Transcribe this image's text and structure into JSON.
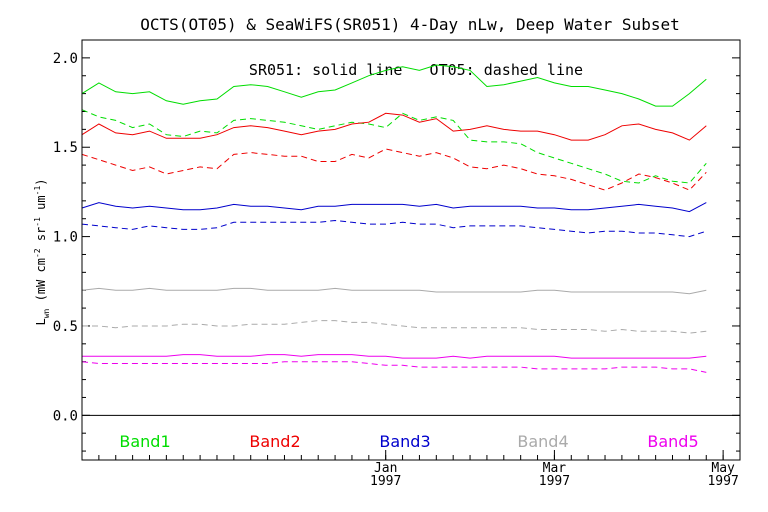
{
  "chart_data": {
    "type": "line",
    "title": "OCTS(OT05) & SeaWiFS(SR051) 4-Day nLw, Deep Water Subset",
    "subtitle": "SR051: solid line   OT05: dashed line",
    "xlabel": "",
    "ylabel": "L_wn (mW cm^-2 sr^-1 um^-1)",
    "ylabel_main": "L",
    "ylabel_sub": "wn",
    "ylabel_units": "(mW cm",
    "ylabel_units_exp1": "-2",
    "ylabel_units_mid": " sr",
    "ylabel_units_exp2": "-1",
    "ylabel_units_mid2": " um",
    "ylabel_units_exp3": "-1",
    "ylabel_units_end": ")",
    "ylim": [
      -0.25,
      2.1
    ],
    "xlim": [
      0,
      39
    ],
    "grid": false,
    "x_ticks": [
      {
        "x": 18,
        "month": "Jan",
        "year": "1997"
      },
      {
        "x": 28,
        "month": "Mar",
        "year": "1997"
      },
      {
        "x": 38,
        "month": "May",
        "year": "1997"
      }
    ],
    "y_ticks": [
      {
        "value": 0.0,
        "label": "0.0"
      },
      {
        "value": 0.5,
        "label": "0.5"
      },
      {
        "value": 1.0,
        "label": "1.0"
      },
      {
        "value": 1.5,
        "label": "1.5"
      },
      {
        "value": 2.0,
        "label": "2.0"
      }
    ],
    "legend": [
      {
        "name": "Band1",
        "color": "#00dd00"
      },
      {
        "name": "Band2",
        "color": "#ee0000"
      },
      {
        "name": "Band3",
        "color": "#0000cc"
      },
      {
        "name": "Band4",
        "color": "#aaaaaa"
      },
      {
        "name": "Band5",
        "color": "#ee00ee"
      }
    ],
    "x": [
      0,
      1,
      2,
      3,
      4,
      5,
      6,
      7,
      8,
      9,
      10,
      11,
      12,
      13,
      14,
      15,
      16,
      17,
      18,
      19,
      20,
      21,
      22,
      23,
      24,
      25,
      26,
      27,
      28,
      29,
      30,
      31,
      32,
      33,
      34,
      35,
      36,
      37
    ],
    "series": [
      {
        "band": "Band1",
        "sensor": "SR051",
        "style": "solid",
        "color": "#00dd00",
        "values": [
          1.8,
          1.86,
          1.81,
          1.8,
          1.81,
          1.76,
          1.74,
          1.76,
          1.77,
          1.84,
          1.85,
          1.84,
          1.81,
          1.78,
          1.81,
          1.82,
          1.86,
          1.9,
          1.93,
          1.95,
          1.93,
          1.96,
          1.95,
          1.93,
          1.84,
          1.85,
          1.87,
          1.89,
          1.86,
          1.84,
          1.84,
          1.82,
          1.8,
          1.77,
          1.73,
          1.73,
          1.8,
          1.88
        ]
      },
      {
        "band": "Band1",
        "sensor": "OT05",
        "style": "dashed",
        "color": "#00dd00",
        "values": [
          1.71,
          1.67,
          1.65,
          1.61,
          1.63,
          1.57,
          1.56,
          1.59,
          1.58,
          1.65,
          1.66,
          1.65,
          1.64,
          1.62,
          1.6,
          1.62,
          1.64,
          1.63,
          1.61,
          1.69,
          1.65,
          1.67,
          1.65,
          1.54,
          1.53,
          1.53,
          1.52,
          1.47,
          1.44,
          1.41,
          1.38,
          1.35,
          1.31,
          1.3,
          1.34,
          1.31,
          1.3,
          1.41
        ]
      },
      {
        "band": "Band2",
        "sensor": "SR051",
        "style": "solid",
        "color": "#ee0000",
        "values": [
          1.57,
          1.63,
          1.58,
          1.57,
          1.59,
          1.55,
          1.55,
          1.55,
          1.57,
          1.61,
          1.62,
          1.61,
          1.59,
          1.57,
          1.59,
          1.6,
          1.63,
          1.64,
          1.69,
          1.68,
          1.64,
          1.66,
          1.59,
          1.6,
          1.62,
          1.6,
          1.59,
          1.59,
          1.57,
          1.54,
          1.54,
          1.57,
          1.62,
          1.63,
          1.6,
          1.58,
          1.54,
          1.62
        ]
      },
      {
        "band": "Band2",
        "sensor": "OT05",
        "style": "dashed",
        "color": "#ee0000",
        "values": [
          1.46,
          1.43,
          1.4,
          1.37,
          1.39,
          1.35,
          1.37,
          1.39,
          1.38,
          1.46,
          1.47,
          1.46,
          1.45,
          1.45,
          1.42,
          1.42,
          1.46,
          1.44,
          1.49,
          1.47,
          1.45,
          1.47,
          1.44,
          1.39,
          1.38,
          1.4,
          1.38,
          1.35,
          1.34,
          1.32,
          1.29,
          1.26,
          1.3,
          1.35,
          1.33,
          1.3,
          1.26,
          1.36
        ]
      },
      {
        "band": "Band3",
        "sensor": "SR051",
        "style": "solid",
        "color": "#0000cc",
        "values": [
          1.16,
          1.19,
          1.17,
          1.16,
          1.17,
          1.16,
          1.15,
          1.15,
          1.16,
          1.18,
          1.17,
          1.17,
          1.16,
          1.15,
          1.17,
          1.17,
          1.18,
          1.18,
          1.18,
          1.18,
          1.17,
          1.18,
          1.16,
          1.17,
          1.17,
          1.17,
          1.17,
          1.16,
          1.16,
          1.15,
          1.15,
          1.16,
          1.17,
          1.18,
          1.17,
          1.16,
          1.14,
          1.19
        ]
      },
      {
        "band": "Band3",
        "sensor": "OT05",
        "style": "dashed",
        "color": "#0000cc",
        "values": [
          1.07,
          1.06,
          1.05,
          1.04,
          1.06,
          1.05,
          1.04,
          1.04,
          1.05,
          1.08,
          1.08,
          1.08,
          1.08,
          1.08,
          1.08,
          1.09,
          1.08,
          1.07,
          1.07,
          1.08,
          1.07,
          1.07,
          1.05,
          1.06,
          1.06,
          1.06,
          1.06,
          1.05,
          1.04,
          1.03,
          1.02,
          1.03,
          1.03,
          1.02,
          1.02,
          1.01,
          1.0,
          1.03
        ]
      },
      {
        "band": "Band4",
        "sensor": "SR051",
        "style": "solid",
        "color": "#aaaaaa",
        "values": [
          0.7,
          0.71,
          0.7,
          0.7,
          0.71,
          0.7,
          0.7,
          0.7,
          0.7,
          0.71,
          0.71,
          0.7,
          0.7,
          0.7,
          0.7,
          0.71,
          0.7,
          0.7,
          0.7,
          0.7,
          0.7,
          0.69,
          0.69,
          0.69,
          0.69,
          0.69,
          0.69,
          0.7,
          0.7,
          0.69,
          0.69,
          0.69,
          0.69,
          0.69,
          0.69,
          0.69,
          0.68,
          0.7
        ]
      },
      {
        "band": "Band4",
        "sensor": "OT05",
        "style": "dashed",
        "color": "#aaaaaa",
        "values": [
          0.5,
          0.5,
          0.49,
          0.5,
          0.5,
          0.5,
          0.51,
          0.51,
          0.5,
          0.5,
          0.51,
          0.51,
          0.51,
          0.52,
          0.53,
          0.53,
          0.52,
          0.52,
          0.51,
          0.5,
          0.49,
          0.49,
          0.49,
          0.49,
          0.49,
          0.49,
          0.49,
          0.48,
          0.48,
          0.48,
          0.48,
          0.47,
          0.48,
          0.47,
          0.47,
          0.47,
          0.46,
          0.47
        ]
      },
      {
        "band": "Band5",
        "sensor": "SR051",
        "style": "solid",
        "color": "#ee00ee",
        "values": [
          0.33,
          0.33,
          0.33,
          0.33,
          0.33,
          0.33,
          0.34,
          0.34,
          0.33,
          0.33,
          0.33,
          0.34,
          0.34,
          0.33,
          0.34,
          0.34,
          0.34,
          0.33,
          0.33,
          0.32,
          0.32,
          0.32,
          0.33,
          0.32,
          0.33,
          0.33,
          0.33,
          0.33,
          0.33,
          0.32,
          0.32,
          0.32,
          0.32,
          0.32,
          0.32,
          0.32,
          0.32,
          0.33
        ]
      },
      {
        "band": "Band5",
        "sensor": "OT05",
        "style": "dashed",
        "color": "#ee00ee",
        "values": [
          0.3,
          0.29,
          0.29,
          0.29,
          0.29,
          0.29,
          0.29,
          0.29,
          0.29,
          0.29,
          0.29,
          0.29,
          0.3,
          0.3,
          0.3,
          0.3,
          0.3,
          0.29,
          0.28,
          0.28,
          0.27,
          0.27,
          0.27,
          0.27,
          0.27,
          0.27,
          0.27,
          0.26,
          0.26,
          0.26,
          0.26,
          0.26,
          0.27,
          0.27,
          0.27,
          0.26,
          0.26,
          0.24
        ]
      }
    ]
  }
}
